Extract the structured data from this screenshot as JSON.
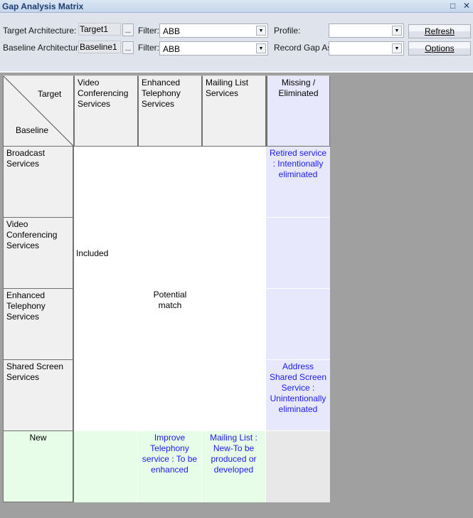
{
  "window": {
    "title": "Gap Analysis Matrix",
    "maximize_icon": "□",
    "close_icon": "✕"
  },
  "toolbar": {
    "target_label": "Target Architecture:",
    "target_value": "Target1",
    "baseline_label": "Baseline Architecture:",
    "baseline_value": "Baseline1",
    "browse": "...",
    "filter_label": "Filter:",
    "filter1_value": "ABB",
    "filter2_value": "ABB",
    "profile_label": "Profile:",
    "profile_value": "",
    "record_label": "Record Gap As:",
    "record_value": "",
    "refresh_label": "Refresh",
    "options_label": "Options",
    "dropdown_icon": "▼"
  },
  "matrix": {
    "corner_target": "Target",
    "corner_baseline": "Baseline",
    "columns": [
      "Video Conferencing Services",
      "Enhanced Telephony Services",
      "Mailing List Services",
      "Missing / Eliminated"
    ],
    "rows": [
      "Broadcast Services",
      "Video Conferencing Services",
      "Enhanced Telephony Services",
      "Shared Screen Services",
      "New"
    ],
    "included": "Included",
    "potential": "Potential match",
    "missing": [
      "Retired service : Intentionally eliminated",
      "",
      "",
      "Address Shared Screen Service : Unintentionally eliminated"
    ],
    "new": [
      "",
      "Improve Telephony service : To be enhanced",
      "Mailing List : New-To be produced or developed",
      ""
    ]
  },
  "colors": {
    "missing_bg": "#e8e8fc",
    "new_bg": "#e8fde8",
    "gap_text": "#1a1aee"
  }
}
